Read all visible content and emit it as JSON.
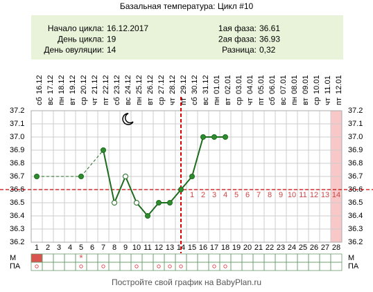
{
  "chart_data": {
    "type": "line",
    "title": "Базальная температура: Цикл #10",
    "info_left": [
      {
        "label": "Начало цикла:",
        "value": "16.12.2017"
      },
      {
        "label": "День цикла:",
        "value": "19"
      },
      {
        "label": "День овуляции:",
        "value": "14"
      }
    ],
    "info_right": [
      {
        "label": "1ая фаза:",
        "value": "36.61"
      },
      {
        "label": "2ая фаза:",
        "value": "36.93"
      },
      {
        "label": "Разница:",
        "value": "0,32"
      }
    ],
    "weekdays": [
      "сб",
      "вс",
      "пн",
      "вт",
      "ср",
      "чт",
      "пт",
      "сб",
      "вс",
      "пн",
      "вт",
      "ср",
      "чт",
      "пт",
      "сб",
      "вс",
      "пн",
      "вт",
      "ср",
      "чт",
      "пт",
      "сб",
      "вс",
      "пн",
      "вт",
      "ср",
      "чт",
      "пт"
    ],
    "dates": [
      "16.12",
      "17.12",
      "18.12",
      "19.12",
      "20.12",
      "21.12",
      "22.12",
      "23.12",
      "24.12",
      "25.12",
      "26.12",
      "27.12",
      "28.12",
      "29.12",
      "30.12",
      "31.12",
      "01.01",
      "02.01",
      "03.01",
      "04.01",
      "05.01",
      "06.01",
      "07.01",
      "08.01",
      "09.01",
      "10.01",
      "11.01",
      "12.01"
    ],
    "x": [
      1,
      2,
      3,
      4,
      5,
      6,
      7,
      8,
      9,
      10,
      11,
      12,
      13,
      14,
      15,
      16,
      17,
      18,
      19,
      20,
      21,
      22,
      23,
      24,
      25,
      26,
      27,
      28
    ],
    "series": [
      {
        "name": "Температура",
        "color": "#1d6b1d",
        "values": [
          36.7,
          null,
          null,
          null,
          36.7,
          null,
          36.9,
          36.5,
          36.7,
          36.5,
          36.4,
          36.5,
          36.5,
          36.6,
          36.7,
          37.0,
          37.0,
          37.0,
          null,
          null,
          null,
          null,
          null,
          null,
          null,
          null,
          null,
          null
        ]
      }
    ],
    "hollow_days": [
      8,
      9,
      10
    ],
    "xlim": [
      0.5,
      28.5
    ],
    "xticks": [
      1,
      2,
      3,
      4,
      5,
      6,
      7,
      8,
      9,
      10,
      11,
      12,
      13,
      14,
      15,
      16,
      17,
      18,
      19,
      20,
      21,
      22,
      23,
      24,
      25,
      26,
      27,
      28
    ],
    "ylim": [
      36.2,
      37.2
    ],
    "yticks": [
      36.2,
      36.3,
      36.4,
      36.5,
      36.6,
      36.7,
      36.8,
      36.9,
      {
        "value": 37,
        "label": "37.0"
      },
      37.1,
      37.2
    ],
    "grid": true,
    "coverline": 36.6,
    "ovulation_day": 14,
    "luteal_days": [
      1,
      2,
      3,
      4,
      5,
      6,
      7,
      8,
      9,
      10,
      11,
      12,
      13,
      14
    ],
    "highlight_days": [
      28
    ],
    "row_labels": [
      "М",
      "ПА"
    ],
    "menstruation_days": [
      1
    ],
    "m_marks": [
      {
        "day": 5,
        "label": "*"
      }
    ],
    "pa_days": [
      1,
      5,
      7,
      10,
      12,
      13,
      14,
      17,
      18
    ],
    "footer": "Постройте свой график на BabyPlan.ru"
  }
}
